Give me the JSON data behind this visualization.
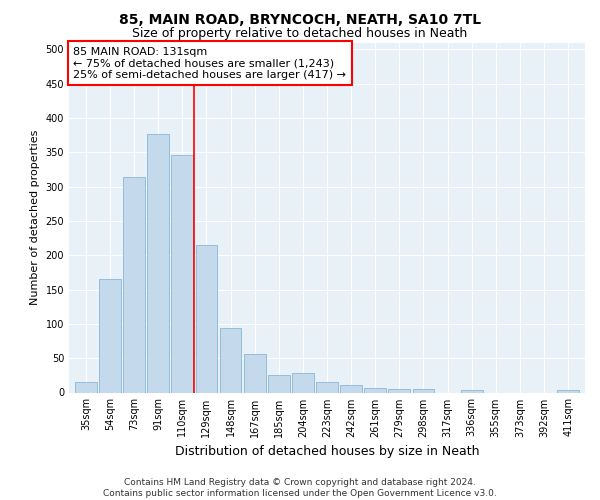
{
  "title": "85, MAIN ROAD, BRYNCOCH, NEATH, SA10 7TL",
  "subtitle": "Size of property relative to detached houses in Neath",
  "xlabel": "Distribution of detached houses by size in Neath",
  "ylabel": "Number of detached properties",
  "categories": [
    "35sqm",
    "54sqm",
    "73sqm",
    "91sqm",
    "110sqm",
    "129sqm",
    "148sqm",
    "167sqm",
    "185sqm",
    "204sqm",
    "223sqm",
    "242sqm",
    "261sqm",
    "279sqm",
    "298sqm",
    "317sqm",
    "336sqm",
    "355sqm",
    "373sqm",
    "392sqm",
    "411sqm"
  ],
  "values": [
    15,
    165,
    314,
    377,
    346,
    215,
    94,
    56,
    25,
    29,
    15,
    11,
    6,
    5,
    5,
    0,
    3,
    0,
    0,
    0,
    4
  ],
  "bar_color": "#c5d9ed",
  "bar_edge_color": "#7aaed0",
  "annotation_text": "85 MAIN ROAD: 131sqm\n← 75% of detached houses are smaller (1,243)\n25% of semi-detached houses are larger (417) →",
  "annotation_box_color": "white",
  "annotation_box_edge_color": "red",
  "vline_color": "red",
  "vline_x": 4.5,
  "footer": "Contains HM Land Registry data © Crown copyright and database right 2024.\nContains public sector information licensed under the Open Government Licence v3.0.",
  "ylim": [
    0,
    510
  ],
  "yticks": [
    0,
    50,
    100,
    150,
    200,
    250,
    300,
    350,
    400,
    450,
    500
  ],
  "plot_background": "#e8f0f8",
  "title_fontsize": 10,
  "subtitle_fontsize": 9,
  "xlabel_fontsize": 9,
  "ylabel_fontsize": 8,
  "tick_fontsize": 7,
  "annotation_fontsize": 8,
  "footer_fontsize": 6.5
}
